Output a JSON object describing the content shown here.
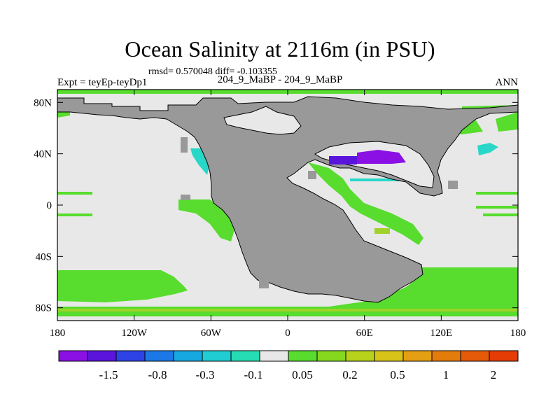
{
  "header": {
    "title": "Ocean Salinity at 2116m (in PSU)",
    "stats": "rmsd= 0.570048 diff= -0.103355",
    "left_label": "Expt = teyEp-teyDp1",
    "center_label": "204_9_MaBP - 204_9_MaBP",
    "right_label": "ANN"
  },
  "map": {
    "lon_range": [
      -180,
      180
    ],
    "lat_range": [
      -90,
      90
    ],
    "x_ticks": [
      {
        "value": -180,
        "label": "180"
      },
      {
        "value": -120,
        "label": "120W"
      },
      {
        "value": -60,
        "label": "60W"
      },
      {
        "value": 0,
        "label": "0"
      },
      {
        "value": 60,
        "label": "60E"
      },
      {
        "value": 120,
        "label": "120E"
      },
      {
        "value": 180,
        "label": "180"
      }
    ],
    "y_ticks": [
      {
        "value": 80,
        "label": "80N"
      },
      {
        "value": 40,
        "label": "40N"
      },
      {
        "value": 0,
        "label": "0"
      },
      {
        "value": -40,
        "label": "40S"
      },
      {
        "value": -80,
        "label": "80S"
      }
    ],
    "colors": {
      "land": "#999999",
      "ocean_neutral": "#e8e8e8",
      "positive_low": "#58dc2e",
      "positive_mid": "#a0d22a",
      "negative_cyan": "#28d7c8",
      "negative_purple": "#8a10e4"
    }
  },
  "colorbar": {
    "colors": [
      "#8a10e4",
      "#5a14dc",
      "#2d43e6",
      "#1b78e6",
      "#16a8e0",
      "#1fcdd2",
      "#26dcb4",
      "#e8e8e8",
      "#58dc2e",
      "#85d81e",
      "#b8d11b",
      "#d8c418",
      "#e4a012",
      "#e47c0c",
      "#e45a08",
      "#e43c04"
    ],
    "labels": [
      {
        "after_index": 1,
        "label": "-1.5"
      },
      {
        "after_index": 3,
        "label": "-0.8"
      },
      {
        "after_index": 5,
        "label": "-0.3"
      },
      {
        "after_index": 7,
        "label": "-0.1"
      },
      {
        "after_index": 9,
        "label": "0.05"
      },
      {
        "after_index": 11,
        "label": "0.2"
      },
      {
        "after_index": 13,
        "label": "0.5"
      },
      {
        "after_index": 15,
        "label": "1"
      },
      {
        "after_index": 17,
        "label": "2"
      }
    ]
  }
}
